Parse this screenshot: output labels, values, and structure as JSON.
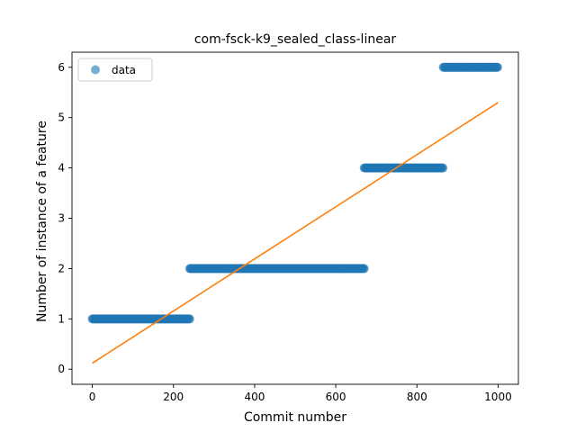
{
  "chart_data": {
    "type": "scatter",
    "title": "com-fsck-k9_sealed_class-linear",
    "xlabel": "Commit number",
    "ylabel": "Number of instance of a feature",
    "xlim": [
      -50,
      1050
    ],
    "ylim": [
      -0.3,
      6.3
    ],
    "xticks": [
      0,
      200,
      400,
      600,
      800,
      1000
    ],
    "yticks": [
      0,
      1,
      2,
      3,
      4,
      5,
      6
    ],
    "legend": {
      "position": "top-left",
      "entries": [
        "data"
      ]
    },
    "grid": false,
    "series": [
      {
        "name": "data",
        "kind": "scatter",
        "color": "#1f77b4",
        "segments": [
          {
            "x_start": 0,
            "x_end": 240,
            "y": 1
          },
          {
            "x_start": 240,
            "x_end": 670,
            "y": 2
          },
          {
            "x_start": 670,
            "x_end": 865,
            "y": 4
          },
          {
            "x_start": 865,
            "x_end": 1000,
            "y": 6
          }
        ]
      },
      {
        "kind": "line",
        "color": "#ff7f0e",
        "x": [
          0,
          1000
        ],
        "y": [
          0.12,
          5.3
        ]
      }
    ]
  }
}
